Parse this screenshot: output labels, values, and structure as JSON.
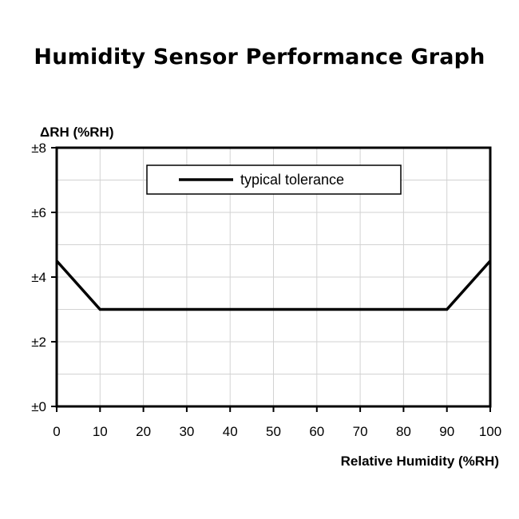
{
  "chart_data": {
    "type": "line",
    "title": "Humidity Sensor Performance Graph",
    "xlabel": "Relative Humidity (%RH)",
    "ylabel": "ΔRH (%RH)",
    "xlim": [
      0,
      100
    ],
    "ylim": [
      0,
      8
    ],
    "x_ticks": [
      0,
      10,
      20,
      30,
      40,
      50,
      60,
      70,
      80,
      90,
      100
    ],
    "x_tick_labels": [
      "0",
      "10",
      "20",
      "30",
      "40",
      "50",
      "60",
      "70",
      "80",
      "90",
      "100"
    ],
    "y_ticks": [
      0,
      2,
      4,
      6,
      8
    ],
    "y_tick_labels": [
      "±0",
      "±2",
      "±4",
      "±6",
      "±8"
    ],
    "grid": true,
    "grid_x_step": 10,
    "grid_y_step": 1,
    "legend_position": "top-center",
    "series": [
      {
        "name": "typical tolerance",
        "color": "#000000",
        "x": [
          0,
          10,
          90,
          100
        ],
        "y": [
          4.5,
          3,
          3,
          4.5
        ]
      }
    ]
  }
}
